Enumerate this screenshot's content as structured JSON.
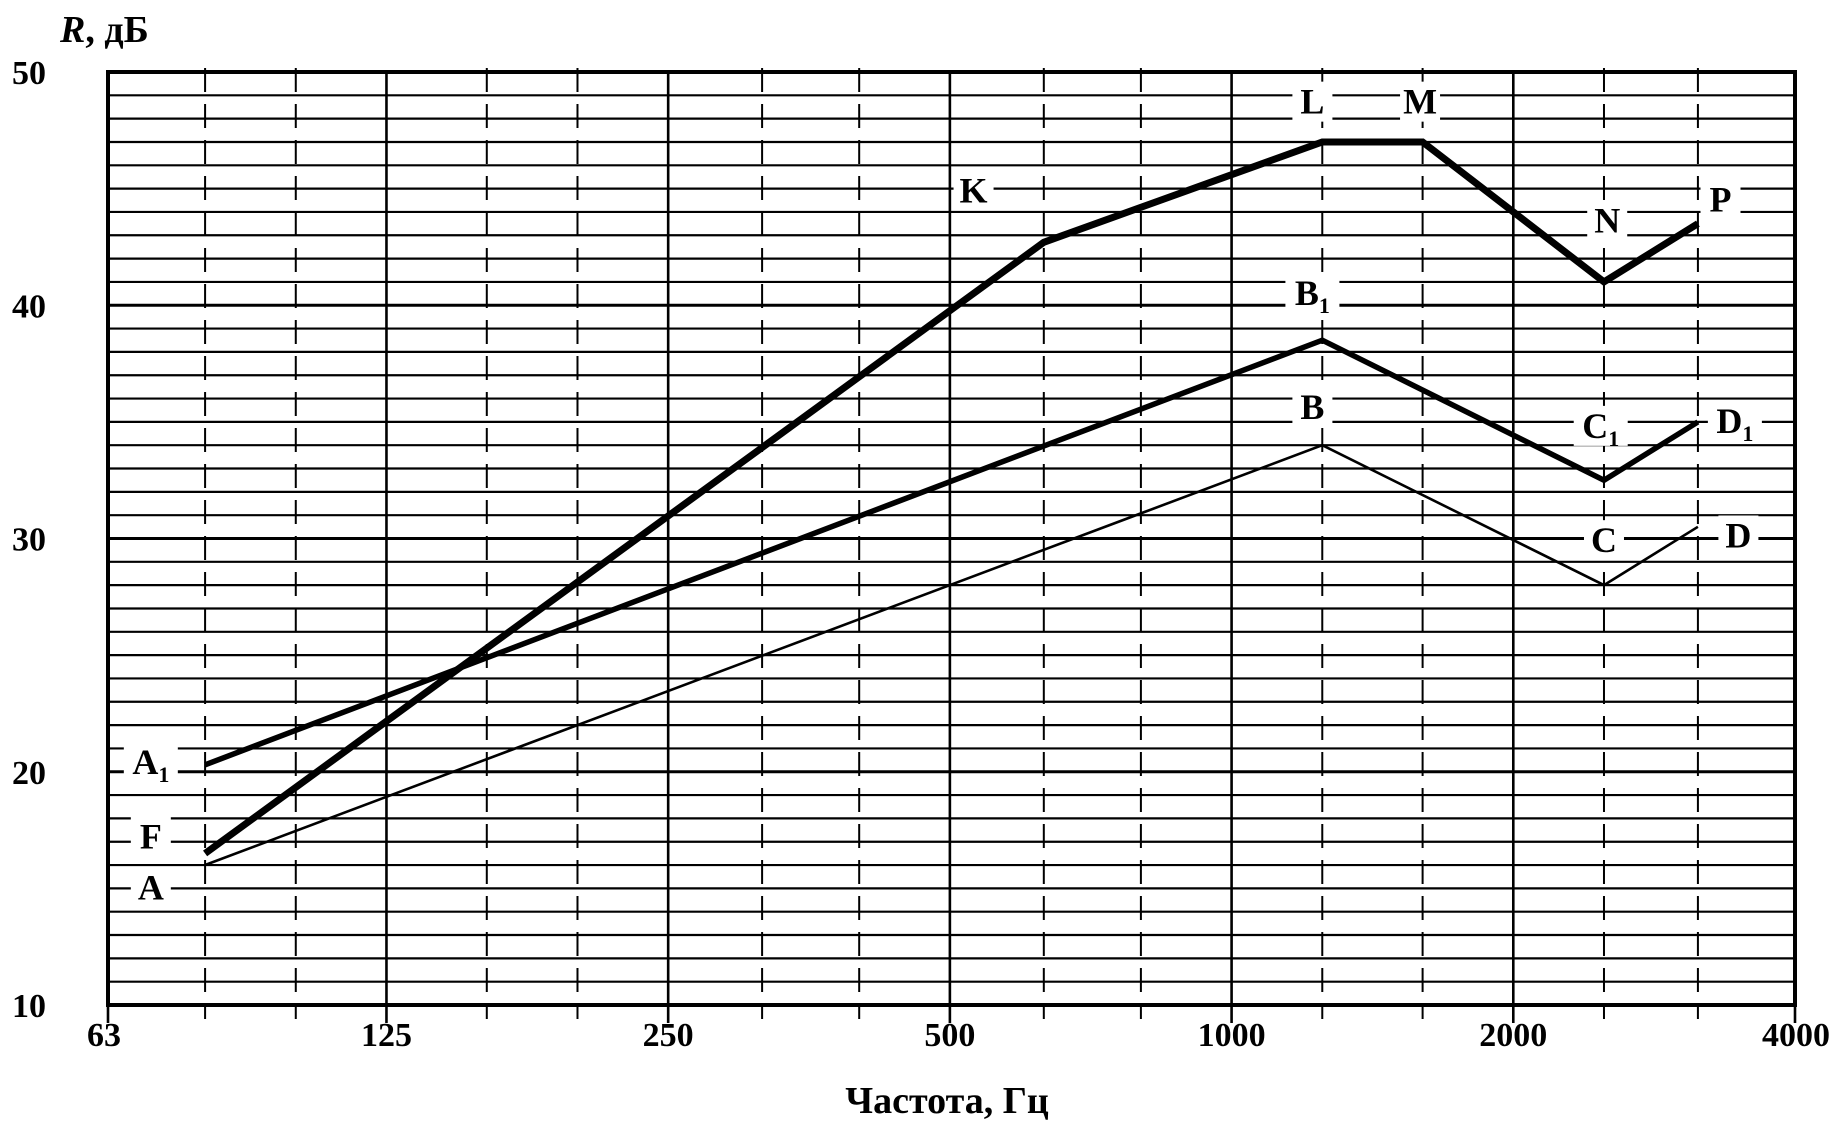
{
  "chart_data": {
    "type": "line",
    "title": "",
    "xlabel": "Частота,  Гц",
    "ylabel": "R, дБ",
    "ylabel_parts": {
      "italic": "R",
      "rest": ", дБ"
    },
    "x_scale": "log2",
    "xlim": [
      63,
      4000
    ],
    "ylim": [
      10,
      50
    ],
    "grid": true,
    "x_ticks": [
      {
        "value": 63,
        "label": "63"
      },
      {
        "value": 125,
        "label": "125"
      },
      {
        "value": 250,
        "label": "250"
      },
      {
        "value": 500,
        "label": "500"
      },
      {
        "value": 1000,
        "label": "1000"
      },
      {
        "value": 2000,
        "label": "2000"
      },
      {
        "value": 4000,
        "label": "4000"
      }
    ],
    "y_ticks": [
      {
        "value": 10,
        "label": "10"
      },
      {
        "value": 20,
        "label": "20"
      },
      {
        "value": 30,
        "label": "30"
      },
      {
        "value": 40,
        "label": "40"
      },
      {
        "value": 50,
        "label": "50"
      }
    ],
    "series": [
      {
        "id": "ABCD",
        "weight": "thin",
        "points": [
          {
            "x": 80,
            "y": 16
          },
          {
            "x": 1250,
            "y": 34
          },
          {
            "x": 2500,
            "y": 28
          },
          {
            "x": 3150,
            "y": 30.5
          }
        ]
      },
      {
        "id": "A1B1C1D1",
        "weight": "medium",
        "points": [
          {
            "x": 80,
            "y": 20.3
          },
          {
            "x": 1250,
            "y": 38.5
          },
          {
            "x": 2500,
            "y": 32.5
          },
          {
            "x": 3150,
            "y": 35
          }
        ]
      },
      {
        "id": "FKLMNP",
        "weight": "thick",
        "points": [
          {
            "x": 80,
            "y": 16.5
          },
          {
            "x": 630,
            "y": 42.7
          },
          {
            "x": 1250,
            "y": 47
          },
          {
            "x": 1600,
            "y": 47
          },
          {
            "x": 2500,
            "y": 41
          },
          {
            "x": 3150,
            "y": 43.5
          }
        ]
      }
    ],
    "annotations": [
      {
        "text": "A",
        "sub": "1",
        "x": 70,
        "y": 20
      },
      {
        "text": "F",
        "sub": "",
        "x": 70,
        "y": 16.8
      },
      {
        "text": "A",
        "sub": "",
        "x": 70,
        "y": 14.6
      },
      {
        "text": "K",
        "sub": "",
        "x": 530,
        "y": 44.5
      },
      {
        "text": "L",
        "sub": "",
        "x": 1220,
        "y": 48.3
      },
      {
        "text": "M",
        "sub": "",
        "x": 1590,
        "y": 48.3
      },
      {
        "text": "N",
        "sub": "",
        "x": 2520,
        "y": 43.2
      },
      {
        "text": "P",
        "sub": "",
        "x": 3330,
        "y": 44.1
      },
      {
        "text": "B",
        "sub": "1",
        "x": 1220,
        "y": 40.1
      },
      {
        "text": "B",
        "sub": "",
        "x": 1220,
        "y": 35.2
      },
      {
        "text": "C",
        "sub": "1",
        "x": 2480,
        "y": 34.4
      },
      {
        "text": "D",
        "sub": "1",
        "x": 3450,
        "y": 34.6
      },
      {
        "text": "C",
        "sub": "",
        "x": 2500,
        "y": 29.5
      },
      {
        "text": "D",
        "sub": "",
        "x": 3480,
        "y": 29.7
      }
    ]
  }
}
